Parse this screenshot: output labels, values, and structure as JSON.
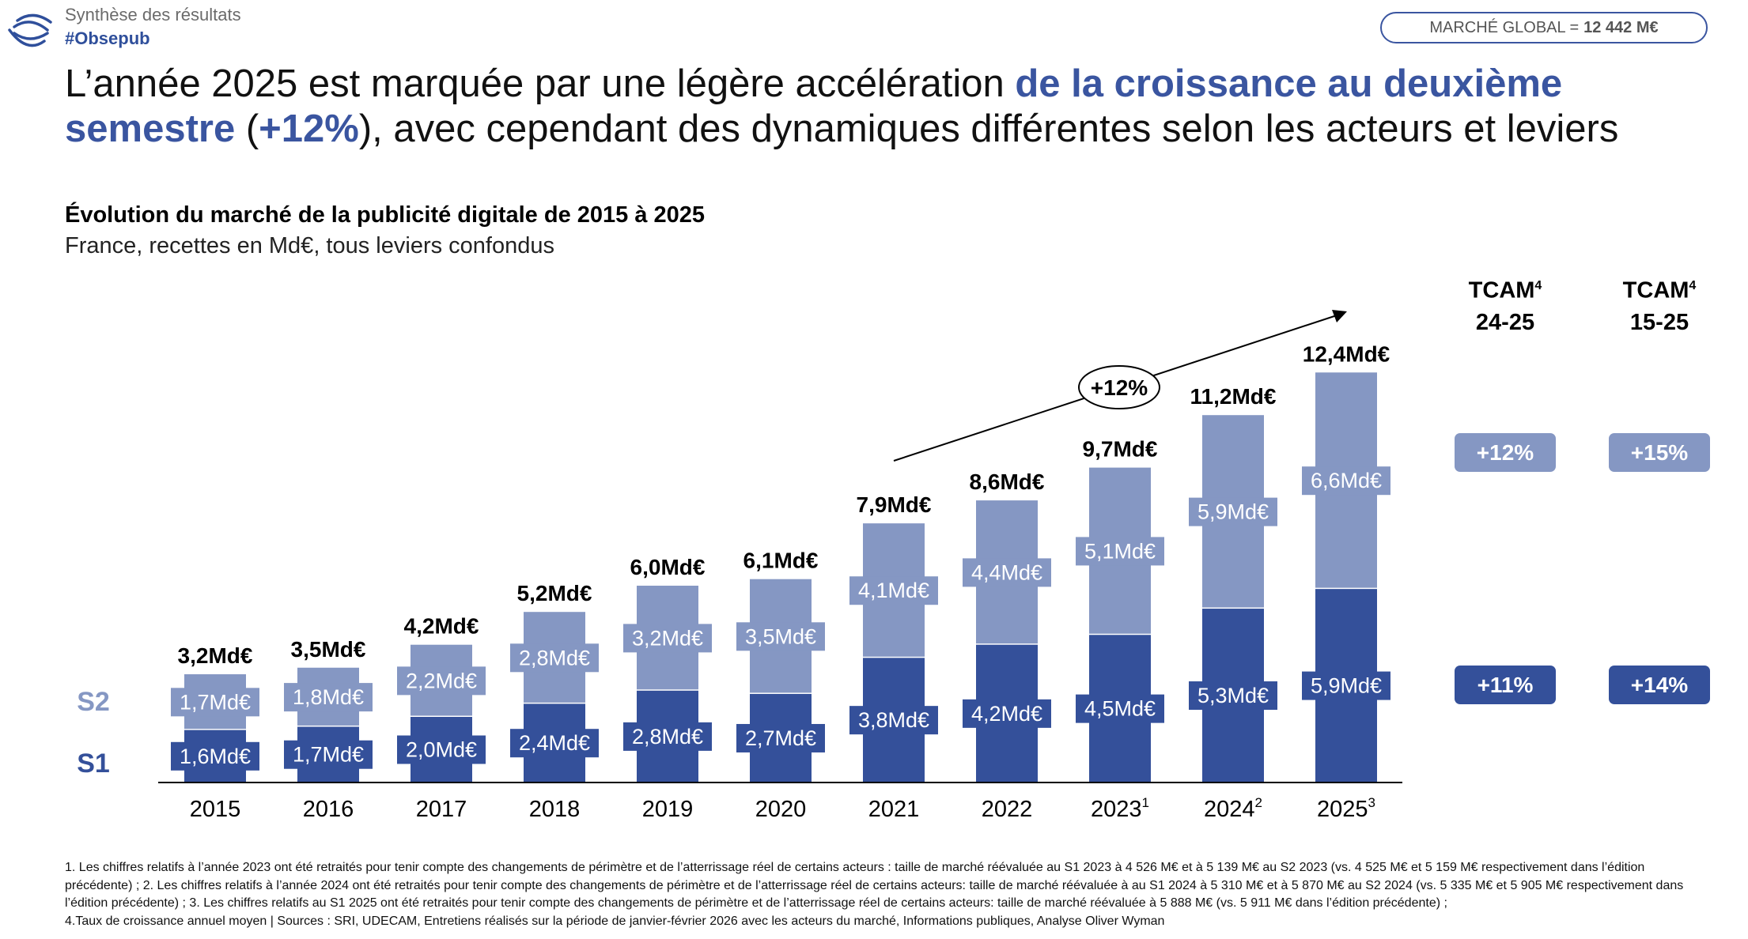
{
  "header": {
    "section": "Synthèse des résultats",
    "hashtag": "#Obsepub",
    "logo_icon": "obsepub-waves-logo"
  },
  "global_market": {
    "label": "MARCHÉ GLOBAL =",
    "value": "12 442 M€"
  },
  "title": {
    "segments": [
      {
        "text": "L’année 2025 est marquée par une légère accélération ",
        "highlight": false
      },
      {
        "text": "de la croissance au deuxième semestre",
        "highlight": true
      },
      {
        "text": " (",
        "highlight": false
      },
      {
        "text": "+12%",
        "highlight": true
      },
      {
        "text": "), avec cependant des dynamiques différentes selon les acteurs et leviers",
        "highlight": false
      }
    ]
  },
  "colors": {
    "s1": "#34509a",
    "s2": "#8597c3",
    "accent": "#3a55a0"
  },
  "chart_data": {
    "type": "bar",
    "stacked": true,
    "title": "Évolution du marché de la publicité digitale de 2015 à 2025",
    "subtitle": "France, recettes en Md€, tous leviers confondus",
    "categories": [
      "2015",
      "2016",
      "2017",
      "2018",
      "2019",
      "2020",
      "2021",
      "2022",
      "2023",
      "2024",
      "2025"
    ],
    "category_superscripts": [
      "",
      "",
      "",
      "",
      "",
      "",
      "",
      "",
      "1",
      "2",
      "3"
    ],
    "series": [
      {
        "name": "S1",
        "values": [
          1.6,
          1.7,
          2.0,
          2.4,
          2.8,
          2.7,
          3.8,
          4.2,
          4.5,
          5.3,
          5.9
        ],
        "labels": [
          "1,6Md€",
          "1,7Md€",
          "2,0Md€",
          "2,4Md€",
          "2,8Md€",
          "2,7Md€",
          "3,8Md€",
          "4,2Md€",
          "4,5Md€",
          "5,3Md€",
          "5,9Md€"
        ]
      },
      {
        "name": "S2",
        "values": [
          1.7,
          1.8,
          2.2,
          2.8,
          3.2,
          3.5,
          4.1,
          4.4,
          5.1,
          5.9,
          6.6
        ],
        "labels": [
          "1,7Md€",
          "1,8Md€",
          "2,2Md€",
          "2,8Md€",
          "3,2Md€",
          "3,5Md€",
          "4,1Md€",
          "4,4Md€",
          "5,1Md€",
          "5,9Md€",
          "6,6Md€"
        ]
      }
    ],
    "totals": [
      3.2,
      3.5,
      4.2,
      5.2,
      6.0,
      6.1,
      7.9,
      8.6,
      9.7,
      11.2,
      12.4
    ],
    "total_labels": [
      "3,2Md€",
      "3,5Md€",
      "4,2Md€",
      "5,2Md€",
      "6,0Md€",
      "6,1Md€",
      "7,9Md€",
      "8,6Md€",
      "9,7Md€",
      "11,2Md€",
      "12,4Md€"
    ],
    "annotation": {
      "text": "+12%",
      "from": "2021",
      "to": "2025"
    },
    "legend": "left",
    "grid": false,
    "ylim": [
      0,
      12.4
    ]
  },
  "tcam": {
    "columns": [
      {
        "title": "TCAM",
        "sup": "4",
        "period": "24-25",
        "s2": "+12%",
        "s1": "+11%"
      },
      {
        "title": "TCAM",
        "sup": "4",
        "period": "15-25",
        "s2": "+15%",
        "s1": "+14%"
      }
    ]
  },
  "footnote": [
    "1. Les chiffres relatifs à l’année 2023 ont été retraités pour tenir compte des changements de périmètre et de l’atterrissage réel de certains acteurs : taille de marché réévaluée au S1 2023 à 4 526 M€ et à 5 139 M€ au S2 2023 (vs. 4 525 M€ et 5 159 M€ respectivement dans l’édition précédente) ; 2. Les chiffres relatifs à l’année 2024 ont été retraités pour tenir compte des changements de périmètre et de l’atterrissage réel de certains acteurs: taille de marché réévaluée à au S1 2024 à  5 310 M€ et à 5 870 M€ au S2 2024 (vs. 5 335 M€ et 5 905 M€ respectivement dans l’édition précédente) ; 3. Les chiffres relatifs au S1 2025 ont été retraités pour tenir compte des changements de périmètre et de l’atterrissage réel de certains acteurs: taille de marché réévaluée à 5 888 M€ (vs. 5 911 M€ dans l’édition précédente) ;",
    "4.Taux de croissance annuel moyen | Sources : SRI, UDECAM, Entretiens réalisés sur la période de janvier-février 2026 avec les acteurs du marché, Informations publiques, Analyse Oliver Wyman"
  ]
}
